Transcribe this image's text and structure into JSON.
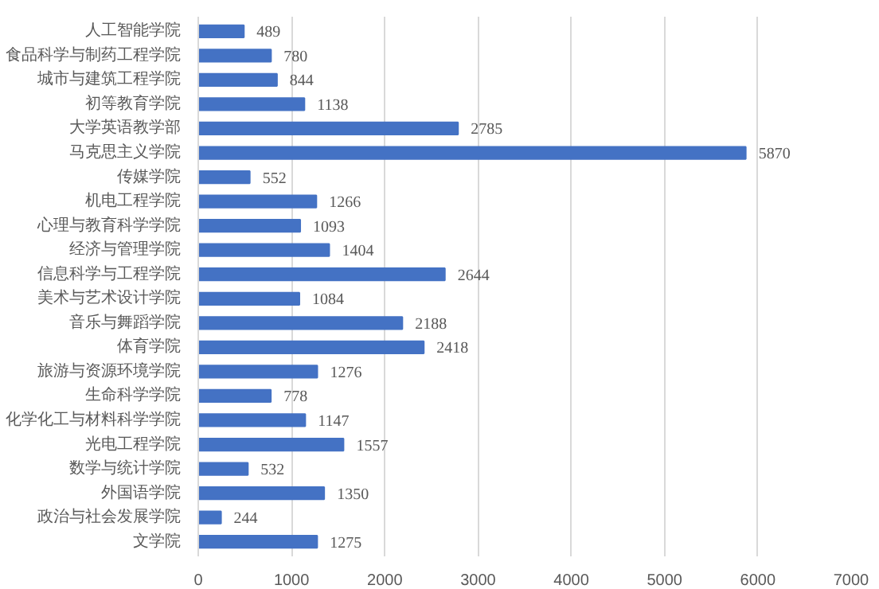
{
  "chart_data": {
    "type": "bar",
    "orientation": "horizontal",
    "categories": [
      "人工智能学院",
      "食品科学与制药工程学院",
      "城市与建筑工程学院",
      "初等教育学院",
      "大学英语教学部",
      "马克思主义学院",
      "传媒学院",
      "机电工程学院",
      "心理与教育科学学院",
      "经济与管理学院",
      "信息科学与工程学院",
      "美术与艺术设计学院",
      "音乐与舞蹈学院",
      "体育学院",
      "旅游与资源环境学院",
      "生命科学学院",
      "化学化工与材料科学学院",
      "光电工程学院",
      "数学与统计学院",
      "外国语学院",
      "政治与社会发展学院",
      "文学院"
    ],
    "values": [
      489,
      780,
      844,
      1138,
      2785,
      5870,
      552,
      1266,
      1093,
      1404,
      2644,
      1084,
      2188,
      2418,
      1276,
      778,
      1147,
      1557,
      532,
      1350,
      244,
      1275
    ],
    "color": "#4472c4",
    "xlim": [
      0,
      7000
    ],
    "xticks": [
      0,
      1000,
      2000,
      3000,
      4000,
      5000,
      6000,
      7000
    ],
    "grid": "x",
    "data_labels": true
  }
}
